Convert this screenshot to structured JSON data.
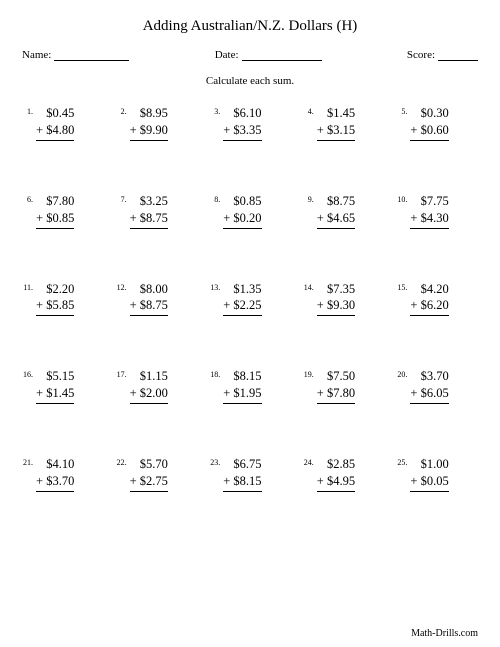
{
  "title": "Adding Australian/N.Z. Dollars (H)",
  "meta": {
    "name_label": "Name:",
    "date_label": "Date:",
    "score_label": "Score:",
    "name_line_width": 75,
    "date_line_width": 80,
    "score_line_width": 40
  },
  "instruction": "Calculate each sum.",
  "plus_sign": "+",
  "problems": [
    {
      "n": "1.",
      "a": "$0.45",
      "b": "$4.80"
    },
    {
      "n": "2.",
      "a": "$8.95",
      "b": "$9.90"
    },
    {
      "n": "3.",
      "a": "$6.10",
      "b": "$3.35"
    },
    {
      "n": "4.",
      "a": "$1.45",
      "b": "$3.15"
    },
    {
      "n": "5.",
      "a": "$0.30",
      "b": "$0.60"
    },
    {
      "n": "6.",
      "a": "$7.80",
      "b": "$0.85"
    },
    {
      "n": "7.",
      "a": "$3.25",
      "b": "$8.75"
    },
    {
      "n": "8.",
      "a": "$0.85",
      "b": "$0.20"
    },
    {
      "n": "9.",
      "a": "$8.75",
      "b": "$4.65"
    },
    {
      "n": "10.",
      "a": "$7.75",
      "b": "$4.30"
    },
    {
      "n": "11.",
      "a": "$2.20",
      "b": "$5.85"
    },
    {
      "n": "12.",
      "a": "$8.00",
      "b": "$8.75"
    },
    {
      "n": "13.",
      "a": "$1.35",
      "b": "$2.25"
    },
    {
      "n": "14.",
      "a": "$7.35",
      "b": "$9.30"
    },
    {
      "n": "15.",
      "a": "$4.20",
      "b": "$6.20"
    },
    {
      "n": "16.",
      "a": "$5.15",
      "b": "$1.45"
    },
    {
      "n": "17.",
      "a": "$1.15",
      "b": "$2.00"
    },
    {
      "n": "18.",
      "a": "$8.15",
      "b": "$1.95"
    },
    {
      "n": "19.",
      "a": "$7.50",
      "b": "$7.80"
    },
    {
      "n": "20.",
      "a": "$3.70",
      "b": "$6.05"
    },
    {
      "n": "21.",
      "a": "$4.10",
      "b": "$3.70"
    },
    {
      "n": "22.",
      "a": "$5.70",
      "b": "$2.75"
    },
    {
      "n": "23.",
      "a": "$6.75",
      "b": "$8.15"
    },
    {
      "n": "24.",
      "a": "$2.85",
      "b": "$4.95"
    },
    {
      "n": "25.",
      "a": "$1.00",
      "b": "$0.05"
    }
  ],
  "footer": "Math-Drills.com",
  "colors": {
    "background": "#ffffff",
    "text": "#000000",
    "rule": "#000000"
  },
  "typography": {
    "title_fontsize": 15,
    "meta_fontsize": 11,
    "instruction_fontsize": 11,
    "problem_fontsize": 12.5,
    "number_fontsize": 8,
    "footer_fontsize": 10,
    "font_family": "Times New Roman"
  },
  "layout": {
    "columns": 5,
    "rows": 5,
    "row_gap": 52,
    "col_gap": 12
  }
}
